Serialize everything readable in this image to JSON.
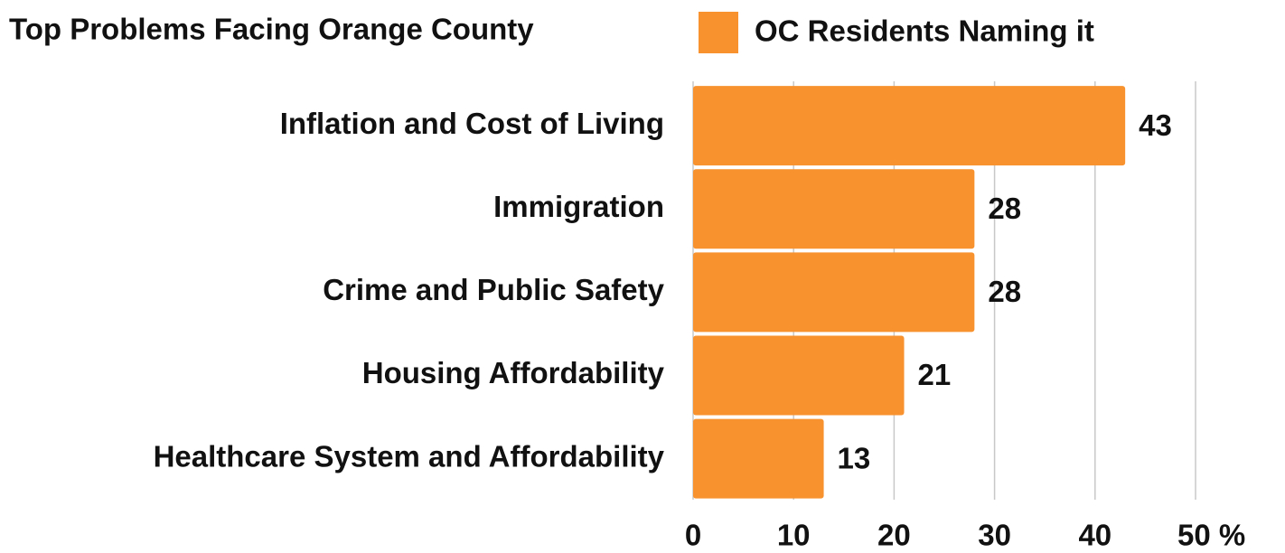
{
  "chart_data": {
    "type": "bar",
    "orientation": "horizontal",
    "title": "Top Problems Facing Orange County",
    "categories": [
      "Inflation and Cost of Living",
      "Immigration",
      "Crime and Public Safety",
      "Housing Affordability",
      "Healthcare System and Affordability"
    ],
    "series": [
      {
        "name": "OC Residents Naming it",
        "color": "#f7922e",
        "values": [
          43,
          28,
          28,
          21,
          13
        ]
      }
    ],
    "xlim": [
      0,
      50
    ],
    "xticks": [
      0,
      10,
      20,
      30,
      40,
      {
        "value": 50,
        "label": "50 %"
      }
    ],
    "grid": true,
    "legend": "top"
  }
}
